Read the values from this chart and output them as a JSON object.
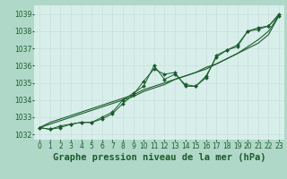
{
  "title": "Graphe pression niveau de la mer (hPa)",
  "background_color": "#b0d8c8",
  "plot_bg_color": "#d8eeea",
  "grid_color": "#c8e0d8",
  "line_color": "#1a5c2a",
  "xlim": [
    -0.5,
    23.5
  ],
  "ylim": [
    1031.7,
    1039.5
  ],
  "yticks": [
    1032,
    1033,
    1034,
    1035,
    1036,
    1037,
    1038,
    1039
  ],
  "xticks": [
    0,
    1,
    2,
    3,
    4,
    5,
    6,
    7,
    8,
    9,
    10,
    11,
    12,
    13,
    14,
    15,
    16,
    17,
    18,
    19,
    20,
    21,
    22,
    23
  ],
  "zigzag1": [
    1032.4,
    1032.3,
    1032.4,
    1032.6,
    1032.7,
    1032.7,
    1032.9,
    1033.2,
    1033.8,
    1034.3,
    1035.1,
    1035.8,
    1035.5,
    1035.6,
    1034.8,
    1034.8,
    1035.3,
    1036.6,
    1036.9,
    1037.2,
    1038.0,
    1038.2,
    1038.3,
    1038.9
  ],
  "zigzag2": [
    1032.4,
    1032.3,
    1032.5,
    1032.6,
    1032.7,
    1032.7,
    1033.0,
    1033.3,
    1034.0,
    1034.4,
    1034.8,
    1036.0,
    1035.2,
    1035.5,
    1034.9,
    1034.8,
    1035.4,
    1036.5,
    1036.9,
    1037.1,
    1038.0,
    1038.1,
    1038.3,
    1039.0
  ],
  "straight1": [
    1032.4,
    1032.7,
    1032.9,
    1033.1,
    1033.3,
    1033.5,
    1033.7,
    1033.9,
    1034.1,
    1034.3,
    1034.6,
    1034.8,
    1035.0,
    1035.2,
    1035.4,
    1035.6,
    1035.9,
    1036.1,
    1036.4,
    1036.7,
    1037.0,
    1037.3,
    1037.8,
    1038.9
  ],
  "straight2": [
    1032.4,
    1032.6,
    1032.8,
    1033.0,
    1033.2,
    1033.4,
    1033.6,
    1033.8,
    1034.0,
    1034.2,
    1034.5,
    1034.7,
    1034.9,
    1035.2,
    1035.4,
    1035.6,
    1035.8,
    1036.1,
    1036.4,
    1036.7,
    1037.1,
    1037.5,
    1038.0,
    1038.9
  ],
  "title_fontsize": 7.5,
  "tick_fontsize": 5.5
}
